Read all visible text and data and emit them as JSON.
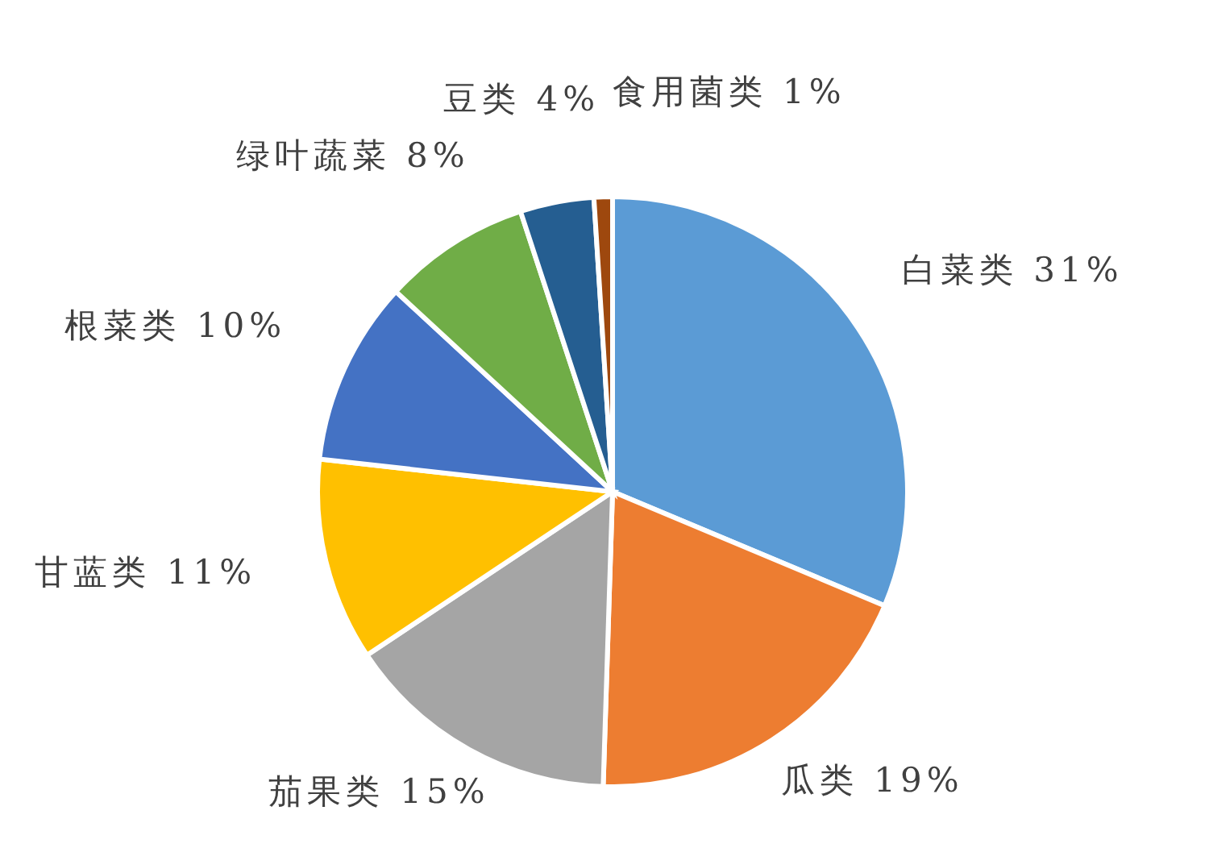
{
  "chart_data": {
    "type": "pie",
    "categories": [
      "白菜类",
      "瓜类",
      "茄果类",
      "甘蓝类",
      "根菜类",
      "绿叶蔬菜",
      "豆类",
      "食用菌类"
    ],
    "values": [
      31,
      19,
      15,
      11,
      10,
      8,
      4,
      1
    ],
    "colors": [
      "#5b9bd5",
      "#ed7d31",
      "#a5a5a5",
      "#ffc000",
      "#4472c4",
      "#70ad47",
      "#255e91",
      "#9e480e"
    ],
    "value_labels": [
      "31%",
      "19%",
      "15%",
      "11%",
      "10%",
      "8%",
      "4%",
      "1%"
    ],
    "legend": false
  }
}
